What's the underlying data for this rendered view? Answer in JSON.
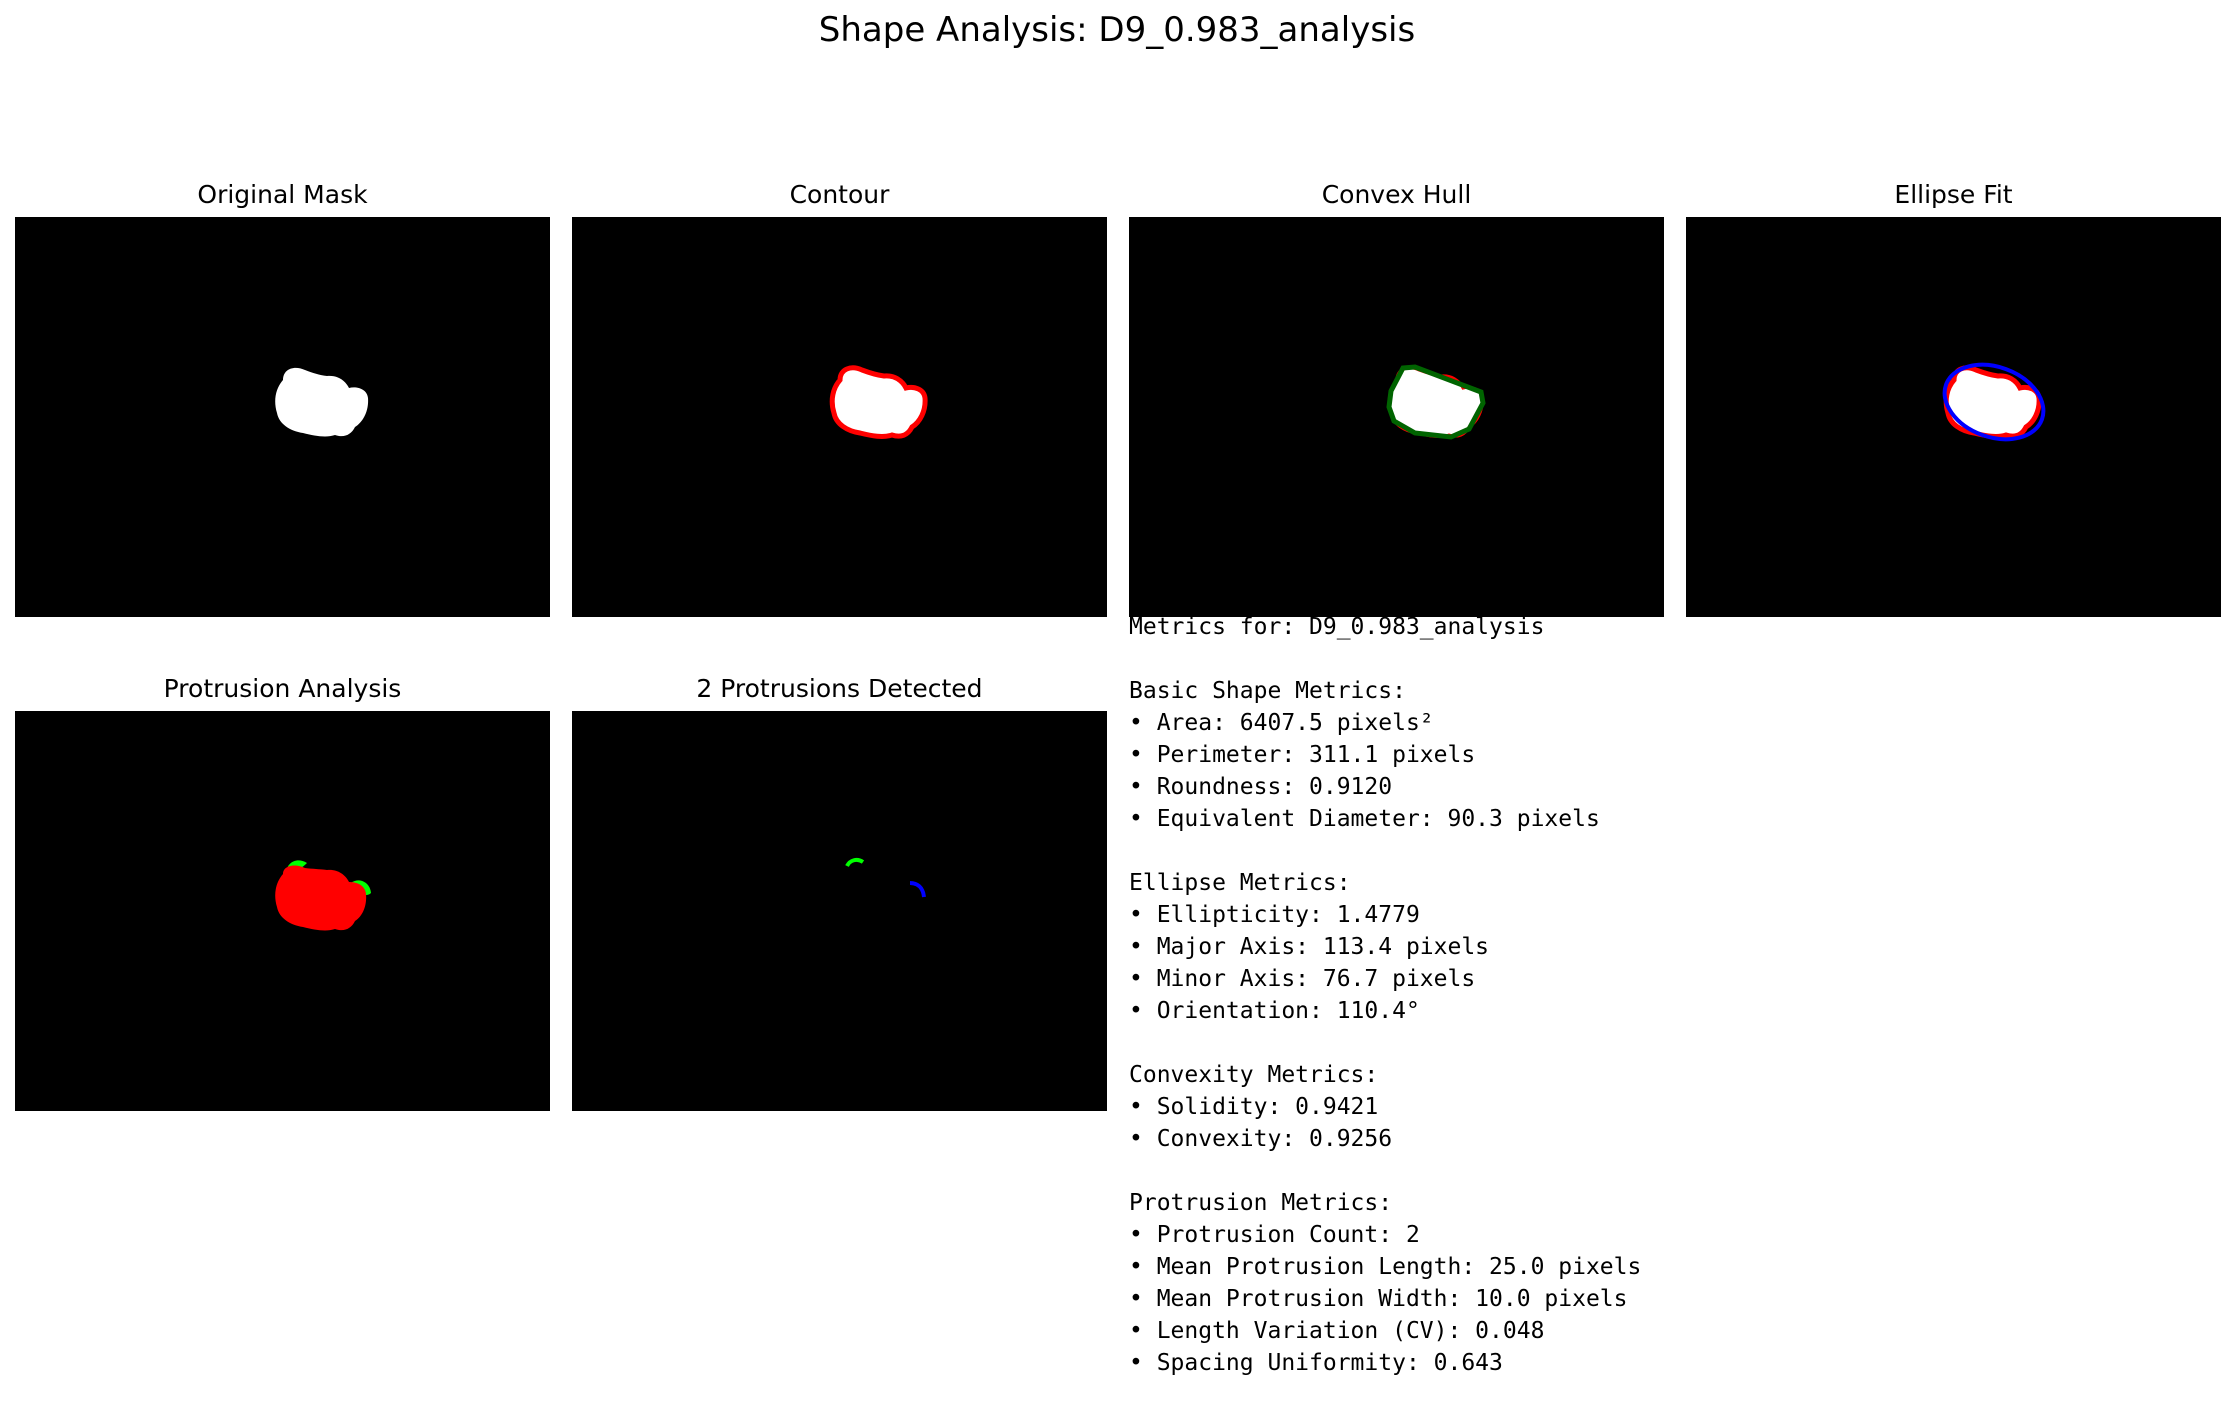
{
  "figure": {
    "title": "Shape Analysis: D9_0.983_analysis"
  },
  "panels": [
    {
      "id": "original-mask",
      "title": "Original Mask"
    },
    {
      "id": "contour",
      "title": "Contour"
    },
    {
      "id": "convex-hull",
      "title": "Convex Hull"
    },
    {
      "id": "ellipse-fit",
      "title": "Ellipse Fit"
    },
    {
      "id": "protrusion-analysis",
      "title": "Protrusion Analysis"
    },
    {
      "id": "protrusions-detected",
      "title": "2 Protrusions Detected"
    }
  ],
  "colors": {
    "background": "#000000",
    "mask": "#ffffff",
    "contour": "#ff0000",
    "hull": "#006400",
    "ellipse": "#0000ff",
    "protrusion_1": "#00ff00",
    "protrusion_2": "#0000ff"
  },
  "metrics": {
    "header": "Metrics for: D9_0.983_analysis",
    "sections": [
      {
        "title": "Basic Shape Metrics:",
        "items": [
          "• Area: 6407.5 pixels²",
          "• Perimeter: 311.1 pixels",
          "• Roundness: 0.9120",
          "• Equivalent Diameter: 90.3 pixels"
        ]
      },
      {
        "title": "Ellipse Metrics:",
        "items": [
          "• Ellipticity: 1.4779",
          "• Major Axis: 113.4 pixels",
          "• Minor Axis: 76.7 pixels",
          "• Orientation: 110.4°"
        ]
      },
      {
        "title": "Convexity Metrics:",
        "items": [
          "• Solidity: 0.9421",
          "• Convexity: 0.9256"
        ]
      },
      {
        "title": "Protrusion Metrics:",
        "items": [
          "• Protrusion Count: 2",
          "• Mean Protrusion Length: 25.0 pixels",
          "• Mean Protrusion Width: 10.0 pixels",
          "• Length Variation (CV): 0.048",
          "• Spacing Uniformity: 0.643"
        ]
      }
    ]
  }
}
